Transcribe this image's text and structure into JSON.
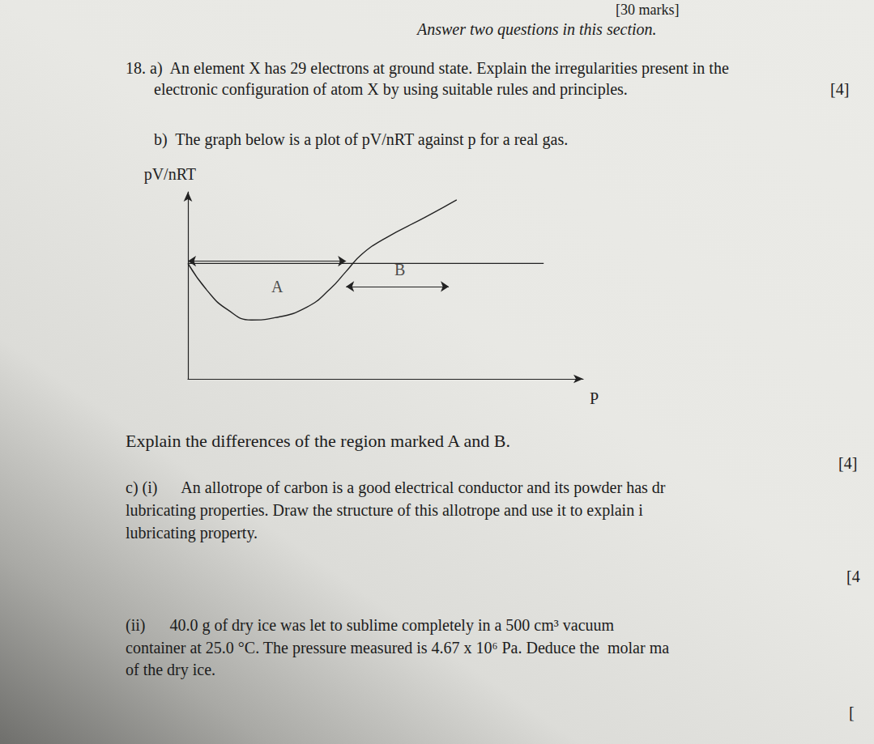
{
  "header": {
    "marks": "[30 marks]",
    "instruction": "Answer two questions in this section."
  },
  "q18a": {
    "lines": [
      "18. a)  An element X has 29 electrons at ground state. Explain the irregularities present in the",
      "electronic configuration of atom X by using suitable rules and principles."
    ],
    "marks": "[4]"
  },
  "q18b": {
    "lines": [
      "b)  The graph below is a plot of pV/nRT against p for a real gas."
    ],
    "question": "Explain the differences of the region marked A and B.",
    "marks": "[4]"
  },
  "q18c_i": {
    "lines": [
      "c) (i)      An allotrope of carbon is a good electrical conductor and its powder has dr",
      "lubricating properties. Draw the structure of this allotrope and use it to explain i",
      "lubricating property."
    ],
    "marks": "[4"
  },
  "q18c_ii": {
    "lines": [
      "(ii)      40.0 g of dry ice was let to sublime completely in a 500 cm³ vacuum",
      "container at 25.0 °C. The pressure measured is 4.67 x 10⁶ Pa. Deduce the  molar ma",
      "of the dry ice."
    ],
    "marks": "["
  },
  "chart_data": {
    "type": "line",
    "x_label": "P",
    "y_label": "pV/nRT",
    "xlim": [
      0,
      10
    ],
    "ylim": [
      0,
      1.62
    ],
    "xticks": [],
    "yticks": [],
    "tick_labels": false,
    "grid": false,
    "series": [
      {
        "x": [
          0,
          0.5,
          1,
          1.6,
          2.2,
          3,
          3.6,
          4,
          4.4,
          5,
          6,
          6.8
        ],
        "values": [
          1.0,
          0.76,
          0.6,
          0.51,
          0.53,
          0.62,
          0.78,
          0.93,
          1.08,
          1.22,
          1.4,
          1.55
        ],
        "color": "#222222",
        "line_style": "solid"
      },
      {
        "x": [
          0,
          9
        ],
        "values": [
          1.0,
          1.0
        ],
        "color": "#222222",
        "line_style": "solid"
      }
    ],
    "arrows": [
      {
        "x": [
          0,
          4
        ],
        "y": 1.02
      },
      {
        "x": [
          4,
          6.6
        ],
        "y": 0.8
      }
    ],
    "annotations": [
      {
        "text": "A",
        "x": 2.26,
        "y": 0.8
      },
      {
        "text": "B",
        "x": 5.36,
        "y": 0.95
      }
    ]
  }
}
